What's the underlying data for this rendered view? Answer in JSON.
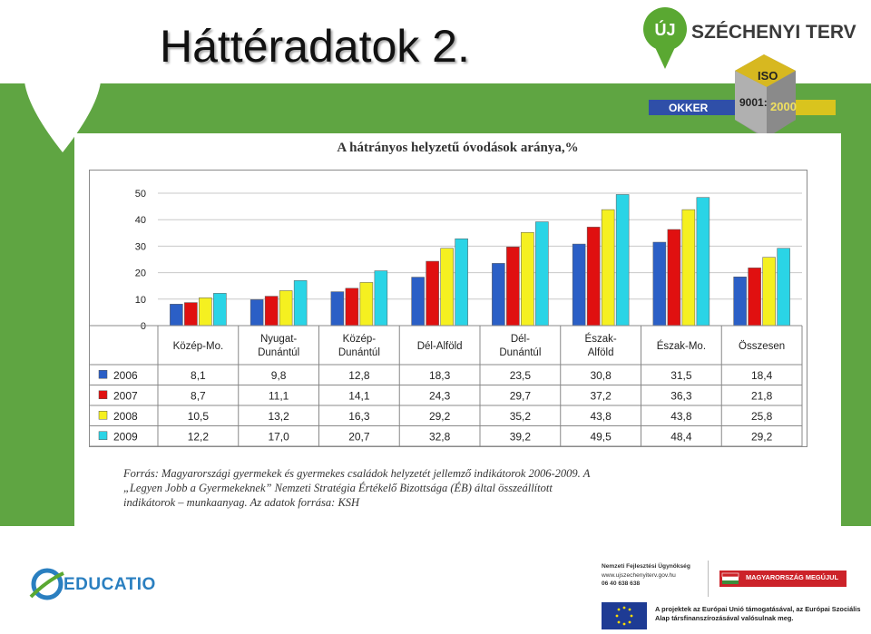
{
  "slide": {
    "title": "Háttéradatok 2."
  },
  "logo": {
    "uj": "ÚJ",
    "brand": "SZÉCHENYI TERV",
    "okker": "OKKER",
    "iso_a": "ISO",
    "iso_b": "9001:",
    "iso_c": "2000"
  },
  "chart_data": {
    "type": "bar",
    "title": "A hátrányos helyzetű óvodások aránya,%",
    "categories": [
      "Közép-Mo.",
      "Nyugat-Dunántúl",
      "Közép-Dunántúl",
      "Dél-Alföld",
      "Dél-Dunántúl",
      "Észak-Alföld",
      "Észak-Mo.",
      "Összesen"
    ],
    "category_lines": [
      [
        "Közép-Mo."
      ],
      [
        "Nyugat-",
        "Dunántúl"
      ],
      [
        "Közép-",
        "Dunántúl"
      ],
      [
        "Dél-Alföld"
      ],
      [
        "Dél-",
        "Dunántúl"
      ],
      [
        "Észak-",
        "Alföld"
      ],
      [
        "Észak-Mo."
      ],
      [
        "Összesen"
      ]
    ],
    "series": [
      {
        "name": "2006",
        "color": "#2b5fc6",
        "values": [
          8.1,
          9.8,
          12.8,
          18.3,
          23.5,
          30.8,
          31.5,
          18.4
        ],
        "labels": [
          "8,1",
          "9,8",
          "12,8",
          "18,3",
          "23,5",
          "30,8",
          "31,5",
          "18,4"
        ]
      },
      {
        "name": "2007",
        "color": "#e01010",
        "values": [
          8.7,
          11.1,
          14.1,
          24.3,
          29.7,
          37.2,
          36.3,
          21.8
        ],
        "labels": [
          "8,7",
          "11,1",
          "14,1",
          "24,3",
          "29,7",
          "37,2",
          "36,3",
          "21,8"
        ]
      },
      {
        "name": "2008",
        "color": "#f5f020",
        "values": [
          10.5,
          13.2,
          16.3,
          29.2,
          35.2,
          43.8,
          43.8,
          25.8
        ],
        "labels": [
          "10,5",
          "13,2",
          "16,3",
          "29,2",
          "35,2",
          "43,8",
          "43,8",
          "25,8"
        ]
      },
      {
        "name": "2009",
        "color": "#2ad4e6",
        "values": [
          12.2,
          17.0,
          20.7,
          32.8,
          39.2,
          49.5,
          48.4,
          29.2
        ],
        "labels": [
          "12,2",
          "17,0",
          "20,7",
          "32,8",
          "39,2",
          "49,5",
          "48,4",
          "29,2"
        ]
      }
    ],
    "ylim": [
      0,
      50
    ],
    "yticks": [
      0,
      10,
      20,
      30,
      40,
      50
    ],
    "grid": true,
    "legend": "data table below the plot"
  },
  "source_lines": [
    "Forrás: Magyarországi gyermekek és gyermekes családok helyzetét jellemző indikátorok 2006-2009. A",
    "„Legyen Jobb a Gyermekeknek” Nemzeti Stratégia Értékelő Bizottsága (ÉB) által összeállított",
    "indikátorok – munkaanyag. Az adatok forrása: KSH"
  ],
  "footer": {
    "educatio": "EDUCATIO",
    "agency_name": "Nemzeti Fejlesztési Ügynökség",
    "agency_url": "www.ujszechenyiterv.gov.hu",
    "agency_phone": "06 40 638 638",
    "hungary_slogan": "MAGYARORSZÁG MEGÚJUL",
    "eu_text": "A projektek az Európai Unió támogatásával, az Európai Szociális Alap társfinanszírozásával valósulnak meg."
  },
  "colors": {
    "band_green": "#5fa542",
    "logo_green": "#5aa832",
    "brand_blue": "#2a7fc0",
    "hu_red": "#cc2229"
  }
}
